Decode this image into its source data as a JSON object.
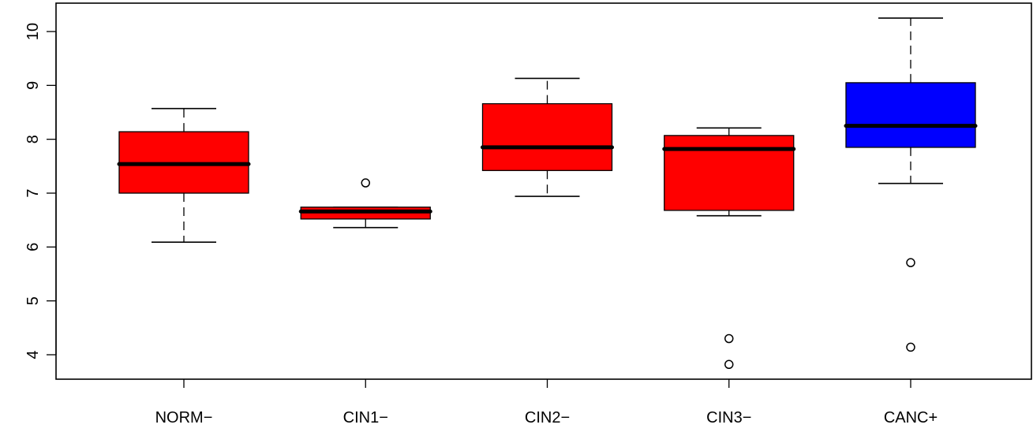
{
  "chart_data": {
    "type": "box",
    "title": "",
    "xlabel": "",
    "ylabel": "",
    "ylim": [
      3.55,
      10.45
    ],
    "y_ticks": [
      4,
      5,
      6,
      7,
      8,
      9,
      10
    ],
    "categories": [
      "NORM−",
      "CIN1−",
      "CIN2−",
      "CIN3−",
      "CANC+"
    ],
    "boxes": [
      {
        "category": "NORM−",
        "color": "#FF0000",
        "whisker_low": 6.09,
        "q1": 7.0,
        "median": 7.54,
        "q3": 8.14,
        "whisker_high": 8.57,
        "outliers": []
      },
      {
        "category": "CIN1−",
        "color": "#FF0000",
        "whisker_low": 6.36,
        "q1": 6.52,
        "median": 6.66,
        "q3": 6.74,
        "whisker_high": 6.74,
        "outliers": [
          7.19
        ]
      },
      {
        "category": "CIN2−",
        "color": "#FF0000",
        "whisker_low": 6.94,
        "q1": 7.42,
        "median": 7.85,
        "q3": 8.66,
        "whisker_high": 9.13,
        "outliers": []
      },
      {
        "category": "CIN3−",
        "color": "#FF0000",
        "whisker_low": 6.58,
        "q1": 6.68,
        "median": 7.82,
        "q3": 8.07,
        "whisker_high": 8.21,
        "outliers": [
          4.3,
          3.82
        ]
      },
      {
        "category": "CANC+",
        "color": "#0000FF",
        "whisker_low": 7.18,
        "q1": 7.85,
        "median": 8.25,
        "q3": 9.05,
        "whisker_high": 10.25,
        "outliers": [
          5.71,
          4.14
        ]
      }
    ]
  }
}
